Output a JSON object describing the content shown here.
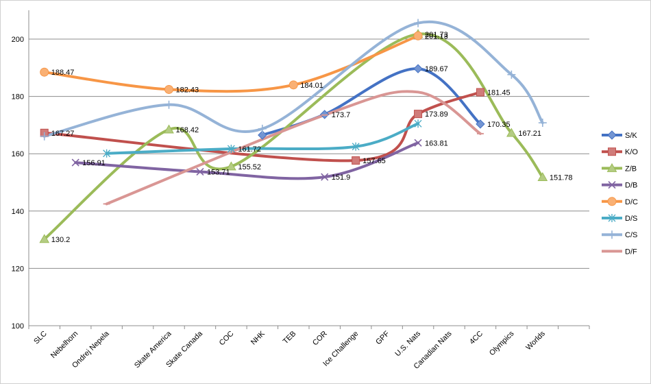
{
  "chart_data": {
    "type": "line",
    "title": "",
    "xlabel": "",
    "ylabel": "",
    "ylim": [
      100,
      210
    ],
    "yticks": [
      100,
      120,
      140,
      160,
      180,
      200
    ],
    "grid": "horizontal",
    "legend_position": "right",
    "categories": [
      "SLC",
      "Nebelhorn",
      "Ondrej Nepela",
      "",
      "Skate America",
      "Skate Canada",
      "COC",
      "NHK",
      "TEB",
      "COR",
      "Ice Challenge",
      "GPF",
      "U.S. Nats",
      "Canadian Nats",
      "4CC",
      "Olympics",
      "Worlds"
    ],
    "series": [
      {
        "name": "S/K",
        "color": "#4472C4",
        "marker": "diamond",
        "points": [
          {
            "x": "NHK",
            "y": 166.5
          },
          {
            "x": "COR",
            "y": 173.7,
            "label": "173.7"
          },
          {
            "x": "U.S. Nats",
            "y": 189.67,
            "label": "189.67"
          },
          {
            "x": "4CC",
            "y": 170.35,
            "label": "170.35"
          }
        ]
      },
      {
        "name": "K/O",
        "color": "#C0504D",
        "marker": "square",
        "points": [
          {
            "x": "SLC",
            "y": 167.27,
            "label": "167.27"
          },
          {
            "x": "Ice Challenge",
            "y": 157.65,
            "label": "157.65"
          },
          {
            "x": "U.S. Nats",
            "y": 173.89,
            "label": "173.89"
          },
          {
            "x": "4CC",
            "y": 181.45,
            "label": "181.45"
          }
        ]
      },
      {
        "name": "Z/B",
        "color": "#9BBB59",
        "marker": "triangle",
        "points": [
          {
            "x": "SLC",
            "y": 130.2,
            "label": "130.2"
          },
          {
            "x": "Skate America",
            "y": 168.42,
            "label": "168.42"
          },
          {
            "x": "COC",
            "y": 155.52,
            "label": "155.52"
          },
          {
            "x": "U.S. Nats",
            "y": 201.73,
            "label": "201.73"
          },
          {
            "x": "Olympics",
            "y": 167.21,
            "label": "167.21"
          },
          {
            "x": "Worlds",
            "y": 151.78,
            "label": "151.78"
          }
        ]
      },
      {
        "name": "D/B",
        "color": "#8064A2",
        "marker": "x",
        "points": [
          {
            "x": "Nebelhorn",
            "y": 156.91,
            "label": "156.91"
          },
          {
            "x": "Skate Canada",
            "y": 153.71,
            "label": "153.71"
          },
          {
            "x": "COR",
            "y": 151.9,
            "label": "151.9"
          },
          {
            "x": "U.S. Nats",
            "y": 163.81,
            "label": "163.81"
          }
        ]
      },
      {
        "name": "D/C",
        "color": "#F79646",
        "marker": "circle",
        "points": [
          {
            "x": "SLC",
            "y": 188.47,
            "label": "188.47"
          },
          {
            "x": "Skate America",
            "y": 182.43,
            "label": "182.43"
          },
          {
            "x": "TEB",
            "y": 184.01,
            "label": "184.01"
          },
          {
            "x": "U.S. Nats",
            "y": 201.13,
            "label": "201.13"
          }
        ]
      },
      {
        "name": "D/S",
        "color": "#4BACC6",
        "marker": "star",
        "points": [
          {
            "x": "Ondrej Nepela",
            "y": 160.1
          },
          {
            "x": "COC",
            "y": 161.72,
            "label": "161.72"
          },
          {
            "x": "Ice Challenge",
            "y": 162.5
          },
          {
            "x": "U.S. Nats",
            "y": 170.5
          }
        ]
      },
      {
        "name": "C/S",
        "color": "#95B3D7",
        "marker": "plus",
        "points": [
          {
            "x": "SLC",
            "y": 166.1
          },
          {
            "x": "Skate America",
            "y": 177.1
          },
          {
            "x": "NHK",
            "y": 168.7
          },
          {
            "x": "U.S. Nats",
            "y": 205.6
          },
          {
            "x": "Olympics",
            "y": 187.6
          },
          {
            "x": "Worlds",
            "y": 170.8
          }
        ]
      },
      {
        "name": "D/F",
        "color": "#D99694",
        "marker": "dash",
        "points": [
          {
            "x": "Ondrej Nepela",
            "y": 142.5
          },
          {
            "x": "COR",
            "y": 173.5
          },
          {
            "x": "U.S. Nats",
            "y": 181.5
          },
          {
            "x": "4CC",
            "y": 167.0
          }
        ]
      }
    ]
  }
}
